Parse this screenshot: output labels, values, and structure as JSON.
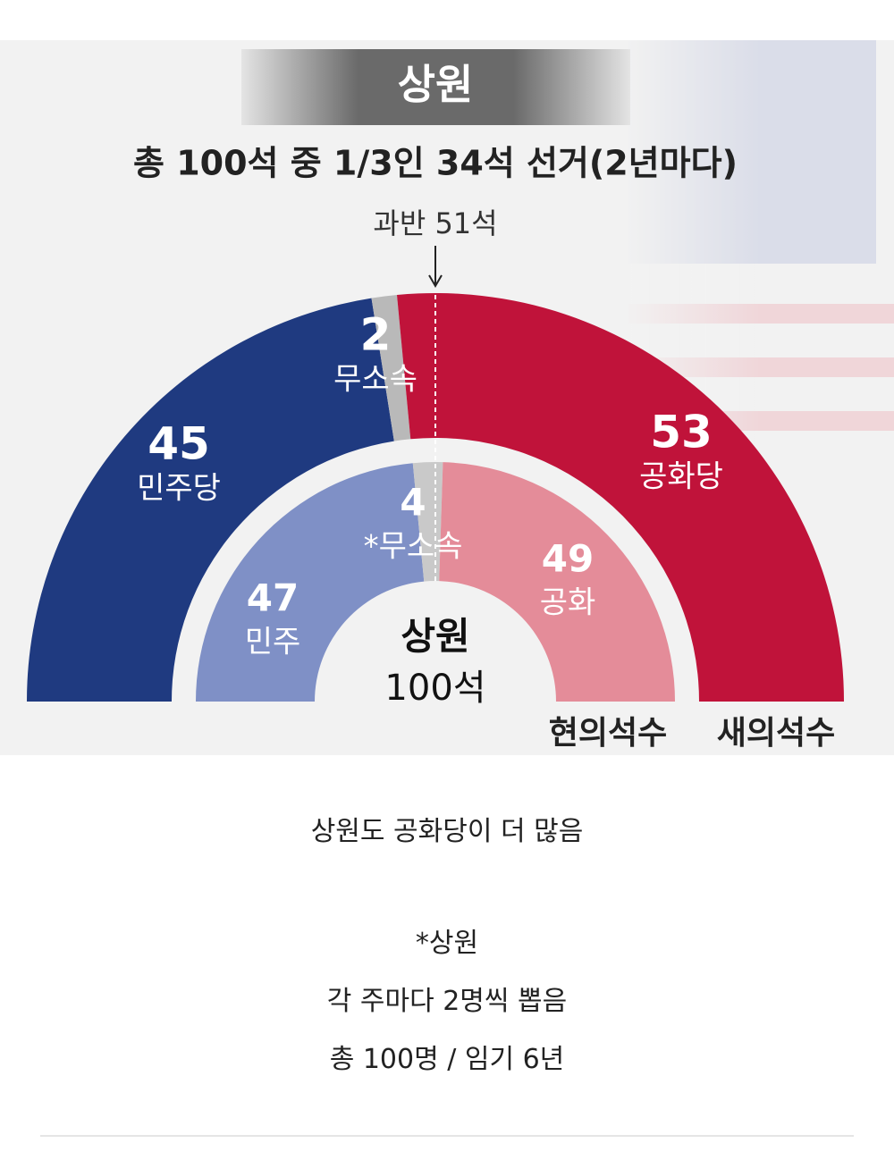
{
  "infographic": {
    "badge": "상원",
    "subtitle": "총 100석 중 1/3인 34석 선거(2년마다)",
    "majority_label": "과반 51석",
    "outer": {
      "label": "새의석수",
      "segments": [
        {
          "name": "민주당",
          "value": 45,
          "color": "#1f3a80"
        },
        {
          "name": "무소속",
          "value": 2,
          "color": "#b9b9b9"
        },
        {
          "name": "공화당",
          "value": 53,
          "color": "#c0133a"
        }
      ]
    },
    "inner": {
      "label": "현의석수",
      "segments": [
        {
          "name": "민주",
          "value": 47,
          "color": "#7f90c6"
        },
        {
          "name": "*무소속",
          "value": 4,
          "color": "#c9c9c9"
        },
        {
          "name": "공화",
          "value": 49,
          "color": "#e48c99"
        }
      ]
    },
    "center": {
      "title": "상원",
      "total": "100석"
    }
  },
  "post": {
    "lines": [
      "상원도 공화당이 더 많음",
      "*상원",
      "각 주마다 2명씩 뽑음",
      "총 100명 / 임기 6년"
    ]
  }
}
